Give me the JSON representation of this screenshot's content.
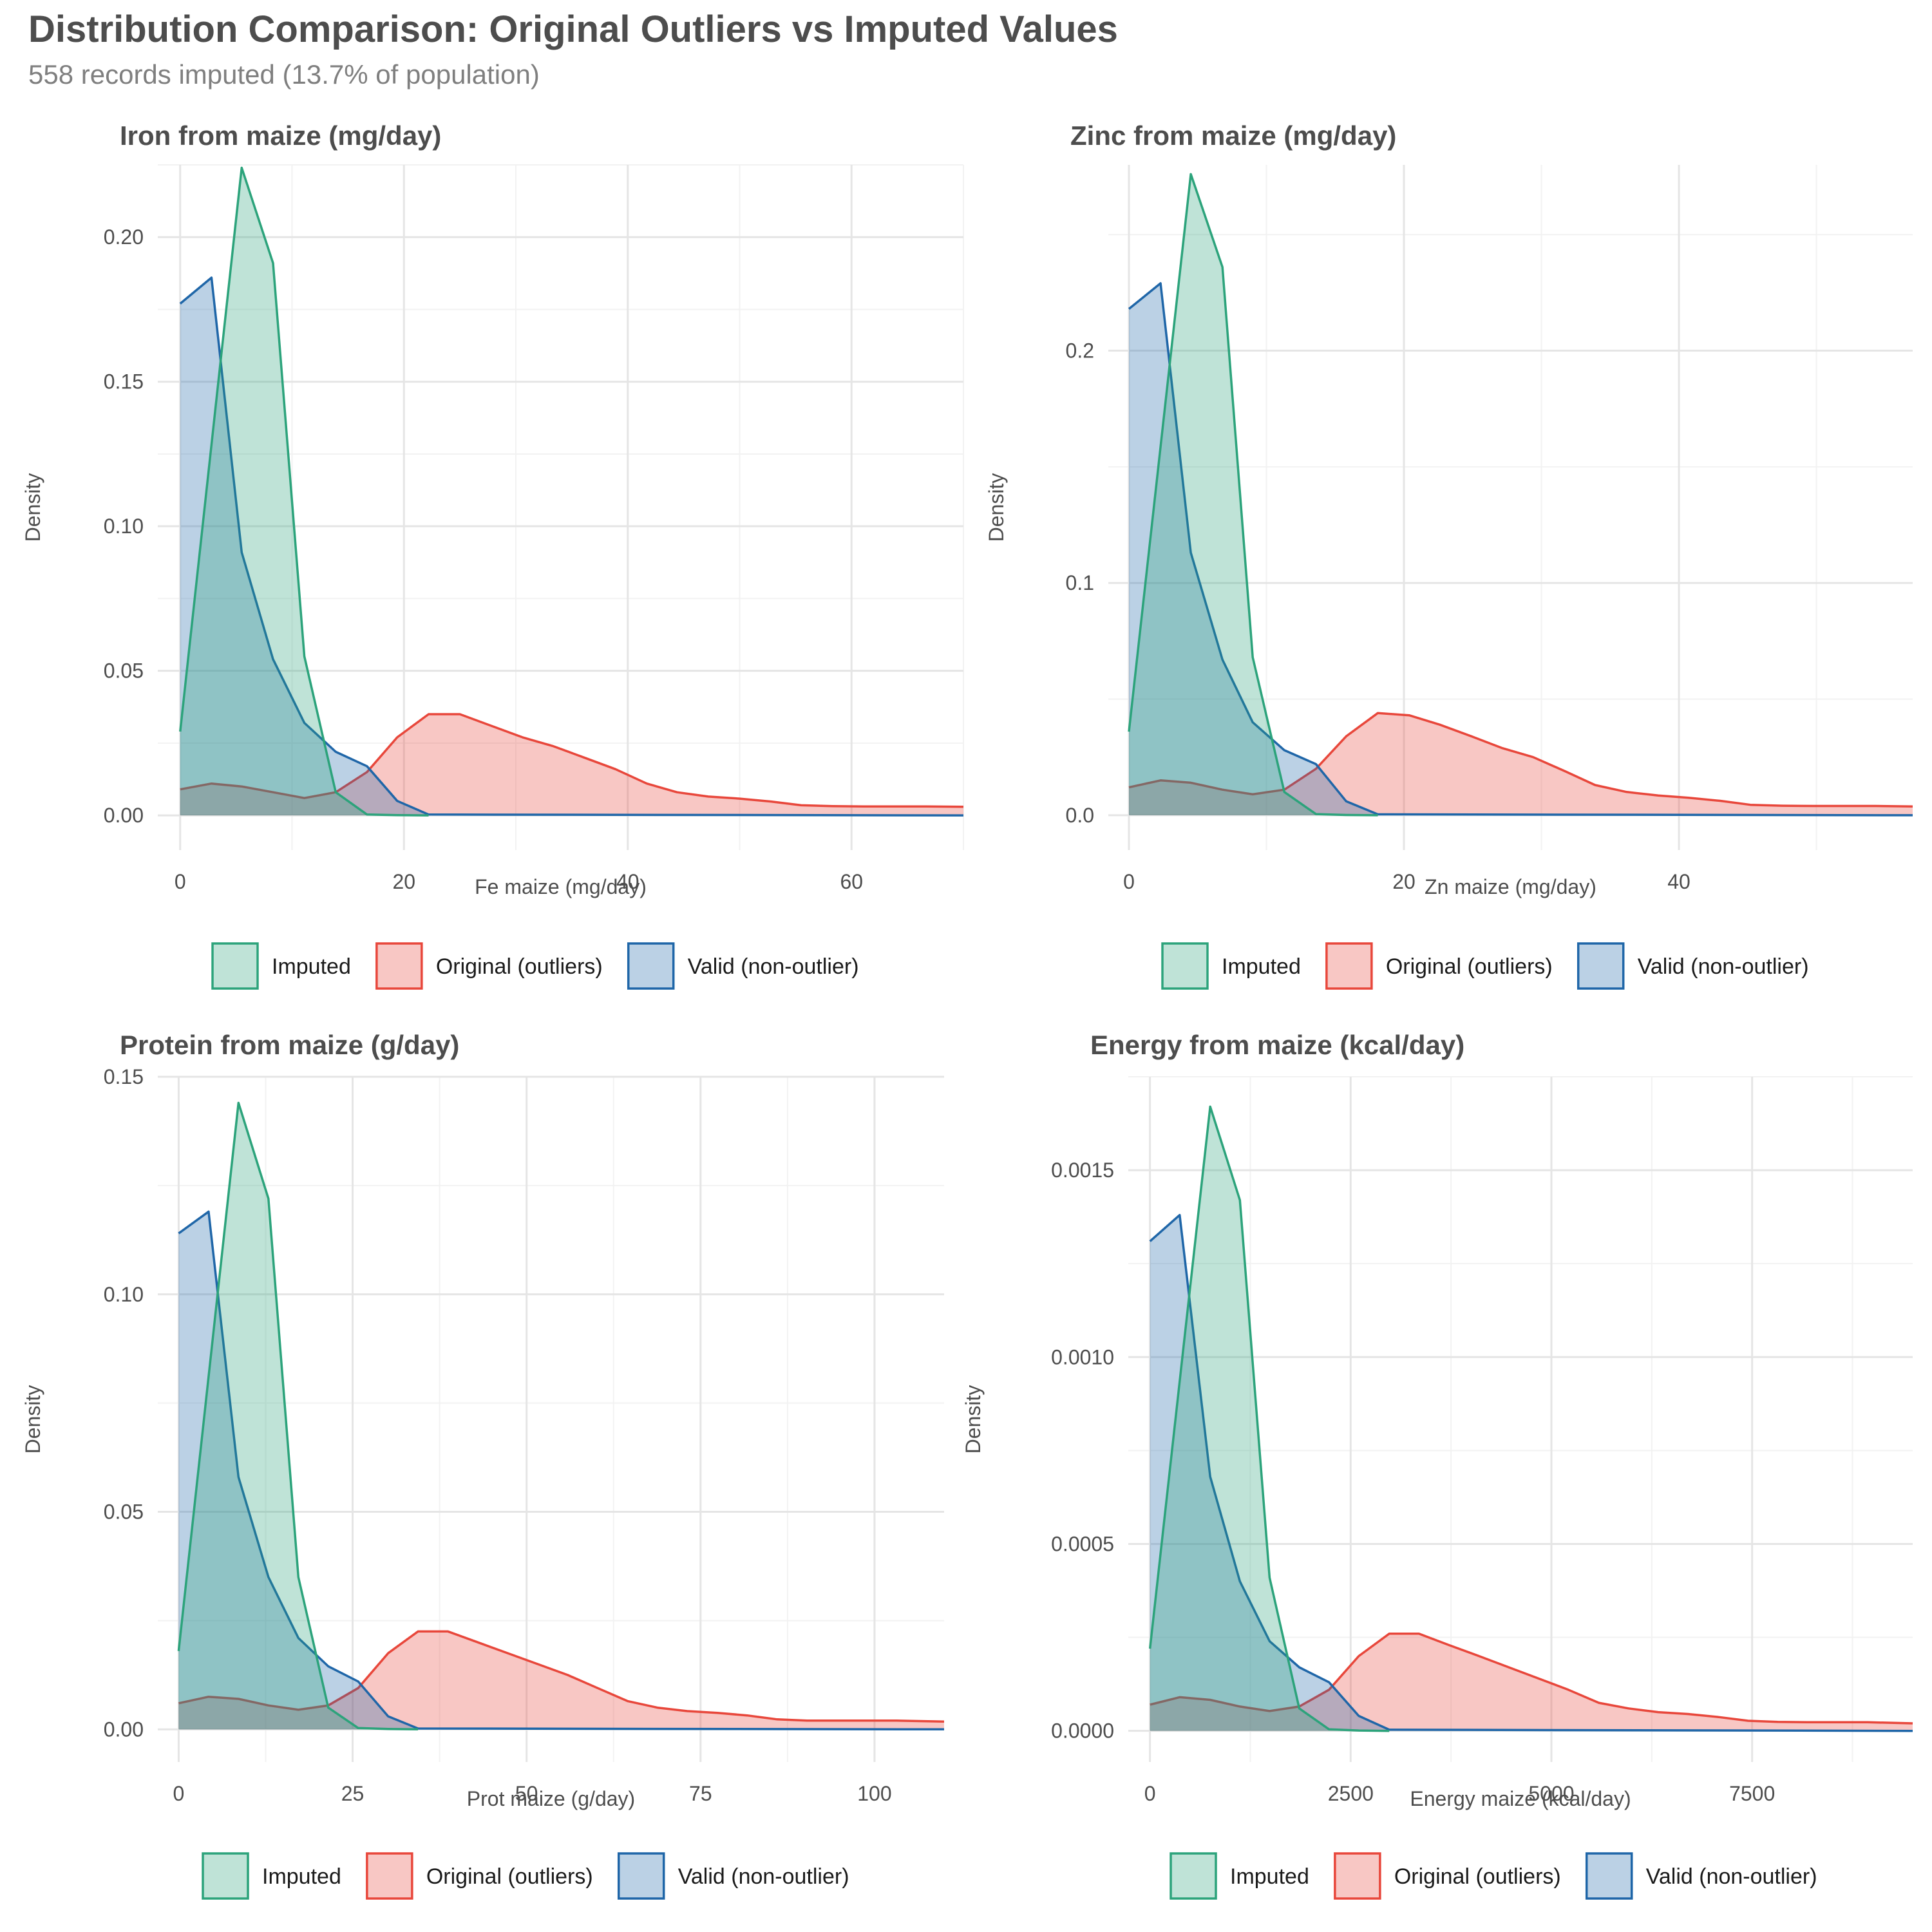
{
  "title": "Distribution Comparison: Original Outliers vs Imputed Values",
  "subtitle": "558 records imputed (13.7% of population)",
  "colors": {
    "Imputed": "#2ca37b",
    "Original (outliers)": "#e8473b",
    "Valid (non-outlier)": "#1f66a8"
  },
  "legend_labels": [
    "Imputed",
    "Original (outliers)",
    "Valid (non-outlier)"
  ],
  "chart_data": [
    {
      "type": "area",
      "title": "Iron from maize (mg/day)",
      "xlabel": "Fe maize (mg/day)",
      "ylabel": "Density",
      "xlim": [
        -2,
        70
      ],
      "ylim": [
        -0.012,
        0.225
      ],
      "xticks": [
        0,
        20,
        40,
        60
      ],
      "xtick_labels": [
        "0",
        "20",
        "40",
        "60"
      ],
      "yticks": [
        0,
        0.05,
        0.1,
        0.15,
        0.2
      ],
      "ytick_labels": [
        "0.00",
        "0.05",
        "0.10",
        "0.15",
        "0.20"
      ],
      "grid": true,
      "legend": "bottom",
      "series": [
        {
          "name": "Imputed",
          "x": [
            0,
            5.5,
            8.3,
            11.1,
            13.9,
            16.7,
            19.4,
            22.2
          ],
          "y": [
            0.029,
            0.224,
            0.191,
            0.055,
            0.008,
            0.0003,
            0.0001,
            0
          ]
        },
        {
          "name": "Original (outliers)",
          "x": [
            0,
            2.8,
            5.5,
            8.3,
            11.1,
            13.9,
            16.7,
            19.4,
            22.2,
            25,
            27.8,
            30.6,
            33.3,
            36.1,
            38.9,
            41.7,
            44.4,
            47.2,
            50,
            52.8,
            55.5,
            58.3,
            61.1,
            63.9,
            66.7,
            70
          ],
          "y": [
            0.009,
            0.011,
            0.01,
            0.008,
            0.006,
            0.008,
            0.015,
            0.027,
            0.035,
            0.035,
            0.031,
            0.027,
            0.024,
            0.02,
            0.016,
            0.011,
            0.008,
            0.0065,
            0.0058,
            0.0048,
            0.0035,
            0.0032,
            0.0031,
            0.0031,
            0.0031,
            0.003
          ]
        },
        {
          "name": "Valid (non-outlier)",
          "x": [
            0,
            2.8,
            5.5,
            8.3,
            11.1,
            13.9,
            16.7,
            19.4,
            22.2,
            70
          ],
          "y": [
            0.177,
            0.186,
            0.091,
            0.054,
            0.032,
            0.022,
            0.017,
            0.005,
            0.0003,
            0
          ]
        }
      ]
    },
    {
      "type": "area",
      "title": "Zinc from maize (mg/day)",
      "xlabel": "Zn maize (mg/day)",
      "ylabel": "Density",
      "xlim": [
        -1.5,
        57
      ],
      "ylim": [
        -0.015,
        0.28
      ],
      "xticks": [
        0,
        20,
        40
      ],
      "xtick_labels": [
        "0",
        "20",
        "40"
      ],
      "yticks": [
        0,
        0.1,
        0.2
      ],
      "ytick_labels": [
        "0.0",
        "0.1",
        "0.2"
      ],
      "grid": true,
      "legend": "bottom",
      "series": [
        {
          "name": "Imputed",
          "x": [
            0,
            4.5,
            6.8,
            9.0,
            11.3,
            13.6,
            15.8,
            18.1
          ],
          "y": [
            0.036,
            0.276,
            0.236,
            0.068,
            0.01,
            0.0005,
            0.0001,
            0
          ]
        },
        {
          "name": "Original (outliers)",
          "x": [
            0,
            2.3,
            4.5,
            6.8,
            9.0,
            11.3,
            13.6,
            15.8,
            18.1,
            20.4,
            22.6,
            24.9,
            27.1,
            29.4,
            31.7,
            33.9,
            36.2,
            38.5,
            40.7,
            43.0,
            45.2,
            47.5,
            49.8,
            52.0,
            54.3,
            57
          ],
          "y": [
            0.012,
            0.015,
            0.014,
            0.011,
            0.009,
            0.011,
            0.02,
            0.034,
            0.044,
            0.043,
            0.039,
            0.034,
            0.029,
            0.025,
            0.019,
            0.013,
            0.01,
            0.0085,
            0.0075,
            0.0062,
            0.0045,
            0.0041,
            0.004,
            0.004,
            0.004,
            0.0038
          ]
        },
        {
          "name": "Valid (non-outlier)",
          "x": [
            0,
            2.3,
            4.5,
            6.8,
            9.0,
            11.3,
            13.6,
            15.8,
            18.1,
            57
          ],
          "y": [
            0.218,
            0.229,
            0.113,
            0.067,
            0.04,
            0.028,
            0.022,
            0.006,
            0.0004,
            0
          ]
        }
      ]
    },
    {
      "type": "area",
      "title": "Protein from maize (g/day)",
      "xlabel": "Prot maize (g/day)",
      "ylabel": "Density",
      "xlim": [
        -3,
        110
      ],
      "ylim": [
        -0.0075,
        0.15
      ],
      "xticks": [
        0,
        25,
        50,
        75,
        100
      ],
      "xtick_labels": [
        "0",
        "25",
        "50",
        "75",
        "100"
      ],
      "yticks": [
        0,
        0.05,
        0.1,
        0.15
      ],
      "ytick_labels": [
        "0.00",
        "0.05",
        "0.10",
        "0.15"
      ],
      "grid": true,
      "legend": "bottom",
      "series": [
        {
          "name": "Imputed",
          "x": [
            0,
            8.6,
            12.9,
            17.2,
            21.5,
            25.8,
            30.1,
            34.4
          ],
          "y": [
            0.018,
            0.144,
            0.122,
            0.035,
            0.005,
            0.0003,
            0.0001,
            0
          ]
        },
        {
          "name": "Original (outliers)",
          "x": [
            0,
            4.3,
            8.6,
            12.9,
            17.2,
            21.5,
            25.8,
            30.1,
            34.4,
            38.7,
            43.0,
            47.3,
            51.6,
            55.9,
            60.2,
            64.5,
            68.8,
            73.1,
            77.4,
            81.7,
            86.0,
            90.3,
            94.6,
            98.9,
            103.2,
            110
          ],
          "y": [
            0.006,
            0.0075,
            0.007,
            0.0055,
            0.0045,
            0.0055,
            0.0095,
            0.0175,
            0.0225,
            0.0225,
            0.02,
            0.0175,
            0.015,
            0.0125,
            0.0095,
            0.0065,
            0.005,
            0.0042,
            0.0038,
            0.0032,
            0.0023,
            0.002,
            0.002,
            0.002,
            0.002,
            0.0018
          ]
        },
        {
          "name": "Valid (non-outlier)",
          "x": [
            0,
            4.3,
            8.6,
            12.9,
            17.2,
            21.5,
            25.8,
            30.1,
            34.4,
            110
          ],
          "y": [
            0.114,
            0.119,
            0.058,
            0.035,
            0.021,
            0.0145,
            0.011,
            0.003,
            0.0002,
            0
          ]
        }
      ]
    },
    {
      "type": "area",
      "title": "Energy from maize (kcal/day)",
      "xlabel": "Energy maize (kcal/day)",
      "ylabel": "Density",
      "xlim": [
        -270,
        9500
      ],
      "ylim": [
        -8.33e-05,
        0.00175
      ],
      "xticks": [
        0,
        2500,
        5000,
        7500
      ],
      "xtick_labels": [
        "0",
        "2500",
        "5000",
        "7500"
      ],
      "yticks": [
        0,
        0.0005,
        0.001,
        0.0015
      ],
      "ytick_labels": [
        "0.0000",
        "0.0005",
        "0.0010",
        "0.0015"
      ],
      "grid": true,
      "legend": "bottom",
      "series": [
        {
          "name": "Imputed",
          "x": [
            0,
            750,
            1120,
            1490,
            1860,
            2230,
            2600,
            2980
          ],
          "y": [
            0.00022,
            0.00167,
            0.00142,
            0.00041,
            6e-05,
            4e-06,
            1e-06,
            0
          ]
        },
        {
          "name": "Original (outliers)",
          "x": [
            0,
            370,
            750,
            1120,
            1490,
            1860,
            2230,
            2600,
            2980,
            3350,
            3720,
            4100,
            4470,
            4840,
            5210,
            5590,
            5960,
            6330,
            6700,
            7080,
            7450,
            7820,
            8190,
            8570,
            8940,
            9500
          ],
          "y": [
            7e-05,
            9e-05,
            8.3e-05,
            6.5e-05,
            5.3e-05,
            6.5e-05,
            0.00011,
            0.0002,
            0.00026,
            0.00026,
            0.00023,
            0.0002,
            0.00017,
            0.00014,
            0.00011,
            7.5e-05,
            6e-05,
            5e-05,
            4.5e-05,
            3.7e-05,
            2.7e-05,
            2.4e-05,
            2.3e-05,
            2.3e-05,
            2.3e-05,
            2e-05
          ]
        },
        {
          "name": "Valid (non-outlier)",
          "x": [
            0,
            370,
            750,
            1120,
            1490,
            1860,
            2230,
            2600,
            2980,
            9500
          ],
          "y": [
            0.00131,
            0.00138,
            0.00068,
            0.0004,
            0.00024,
            0.00017,
            0.00013,
            4e-05,
            3e-06,
            0
          ]
        }
      ]
    }
  ]
}
